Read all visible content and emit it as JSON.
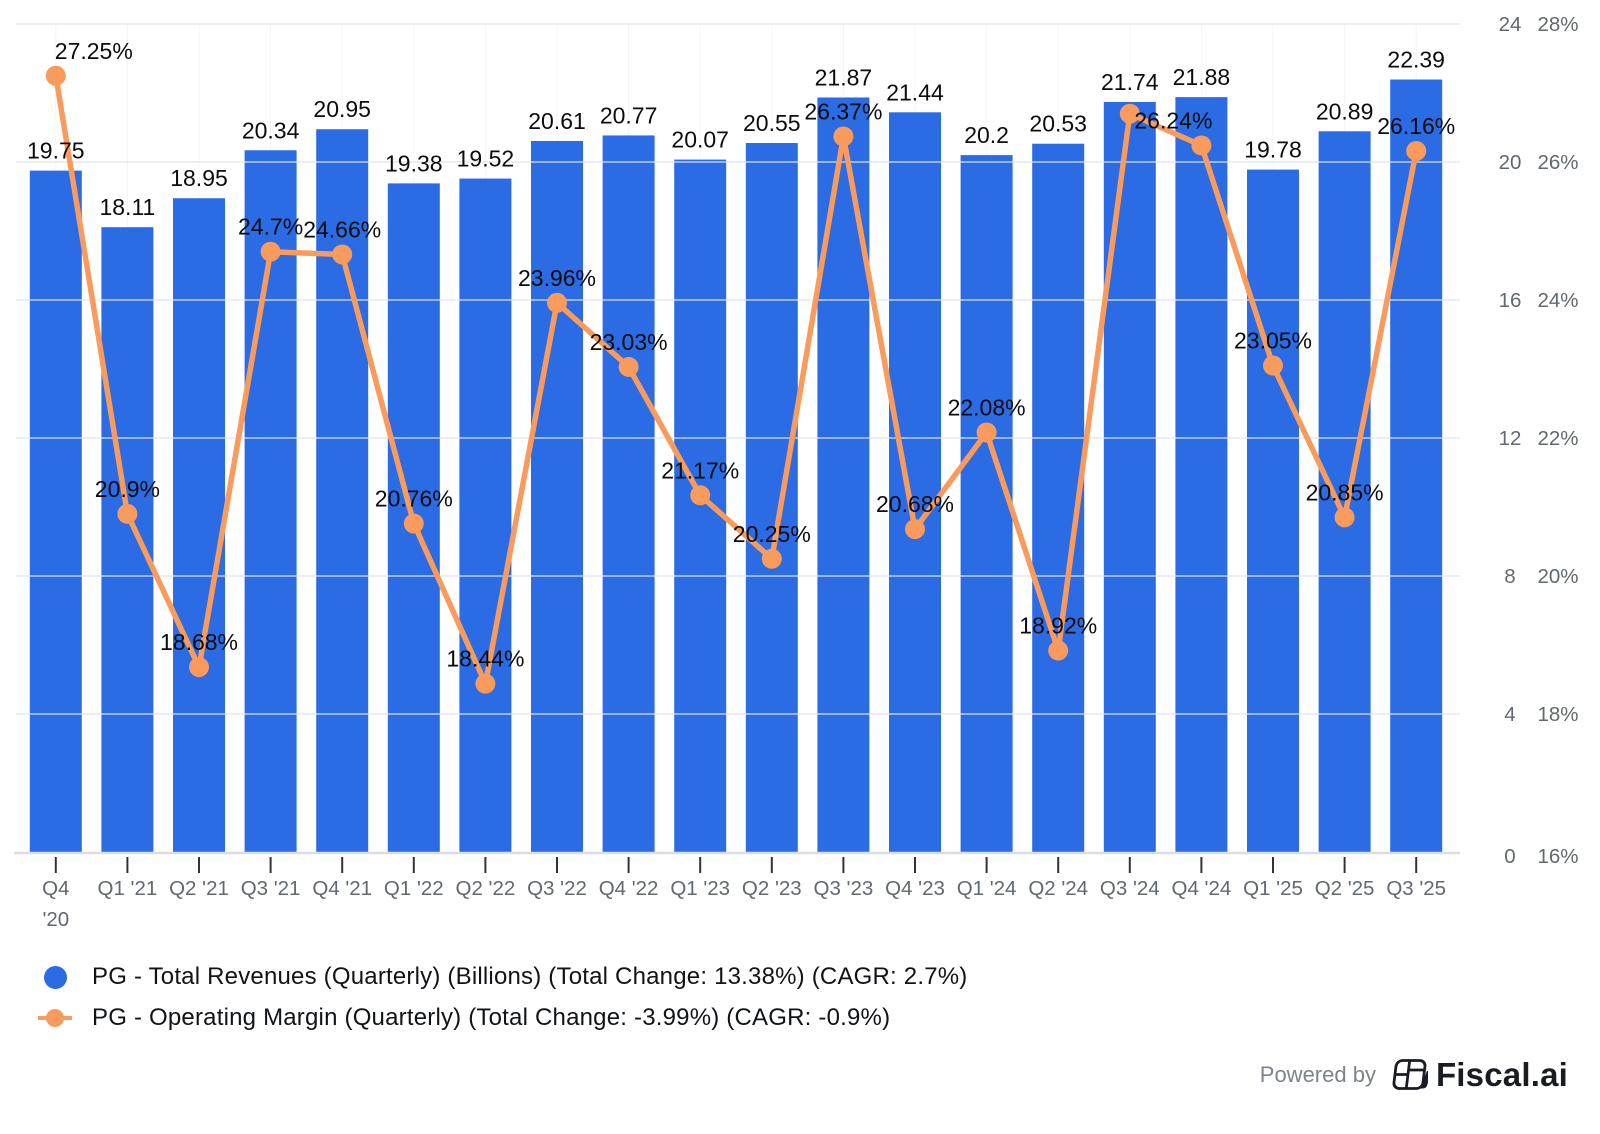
{
  "chart_data": {
    "type": "bar",
    "subtype": "combo-bar-line",
    "categories": [
      "Q4 '20",
      "Q1 '21",
      "Q2 '21",
      "Q3 '21",
      "Q4 '21",
      "Q1 '22",
      "Q2 '22",
      "Q3 '22",
      "Q4 '22",
      "Q1 '23",
      "Q2 '23",
      "Q3 '23",
      "Q4 '23",
      "Q1 '24",
      "Q2 '24",
      "Q3 '24",
      "Q4 '24",
      "Q1 '25",
      "Q2 '25",
      "Q3 '25"
    ],
    "series": [
      {
        "name": "PG - Total Revenues (Quarterly) (Billions) (Total Change: 13.38%) (CAGR: 2.7%)",
        "type": "bar",
        "axis": "billions",
        "color": "#2B6BE3",
        "values": [
          19.75,
          18.11,
          18.95,
          20.34,
          20.95,
          19.38,
          19.52,
          20.61,
          20.77,
          20.07,
          20.55,
          21.87,
          21.44,
          20.2,
          20.53,
          21.74,
          21.88,
          19.78,
          20.89,
          22.39
        ],
        "labels": [
          "19.75",
          "18.11",
          "18.95",
          "20.34",
          "20.95",
          "19.38",
          "19.52",
          "20.61",
          "20.77",
          "20.07",
          "20.55",
          "21.87",
          "21.44",
          "20.2",
          "20.53",
          "21.74",
          "21.88",
          "19.78",
          "20.89",
          "22.39"
        ]
      },
      {
        "name": "PG - Operating Margin (Quarterly) (Total Change: -3.99%) (CAGR: -0.9%)",
        "type": "line",
        "axis": "percent",
        "color": "#F89B5C",
        "values": [
          27.25,
          20.9,
          18.68,
          24.7,
          24.66,
          20.76,
          18.44,
          23.96,
          23.03,
          21.17,
          20.25,
          26.37,
          20.68,
          22.08,
          18.92,
          26.7,
          26.24,
          23.05,
          20.85,
          26.16
        ],
        "labels": [
          "27.25%",
          "20.9%",
          "18.68%",
          "24.7%",
          "24.66%",
          "20.76%",
          "18.44%",
          "23.96%",
          "23.03%",
          "21.17%",
          "20.25%",
          "26.37%",
          "20.68%",
          "22.08%",
          "18.92%",
          "",
          "26.24%",
          "23.05%",
          "20.85%",
          "26.16%"
        ]
      }
    ],
    "axis_billions": {
      "ticks": [
        "0",
        "4",
        "8",
        "12",
        "16",
        "20",
        "24"
      ],
      "min": 0,
      "max": 24
    },
    "axis_percent": {
      "ticks": [
        "16%",
        "18%",
        "20%",
        "22%",
        "24%",
        "26%",
        "28%"
      ],
      "min": 16,
      "max": 28
    },
    "grid": true,
    "legend_position": "bottom-left",
    "title": "",
    "xlabel": "",
    "ylabel": ""
  },
  "legend": {
    "items": [
      {
        "label": "PG - Total Revenues (Quarterly) (Billions) (Total Change: 13.38%) (CAGR: 2.7%)",
        "color": "#2B6BE3",
        "marker": "circle"
      },
      {
        "label": "PG - Operating Margin (Quarterly) (Total Change: -3.99%) (CAGR: -0.9%)",
        "color": "#F89B5C",
        "marker": "line-dot"
      }
    ]
  },
  "footer": {
    "powered_by": "Powered by",
    "brand": "Fiscal.ai"
  },
  "colors": {
    "bar": "#2B6BE3",
    "line": "#F89B5C",
    "data_label": "#0a0c0e",
    "axis_text": "#62686f",
    "gridline": "#ECEEF2",
    "axis_line": "#DADDE2",
    "tick_mark": "#30343a"
  }
}
